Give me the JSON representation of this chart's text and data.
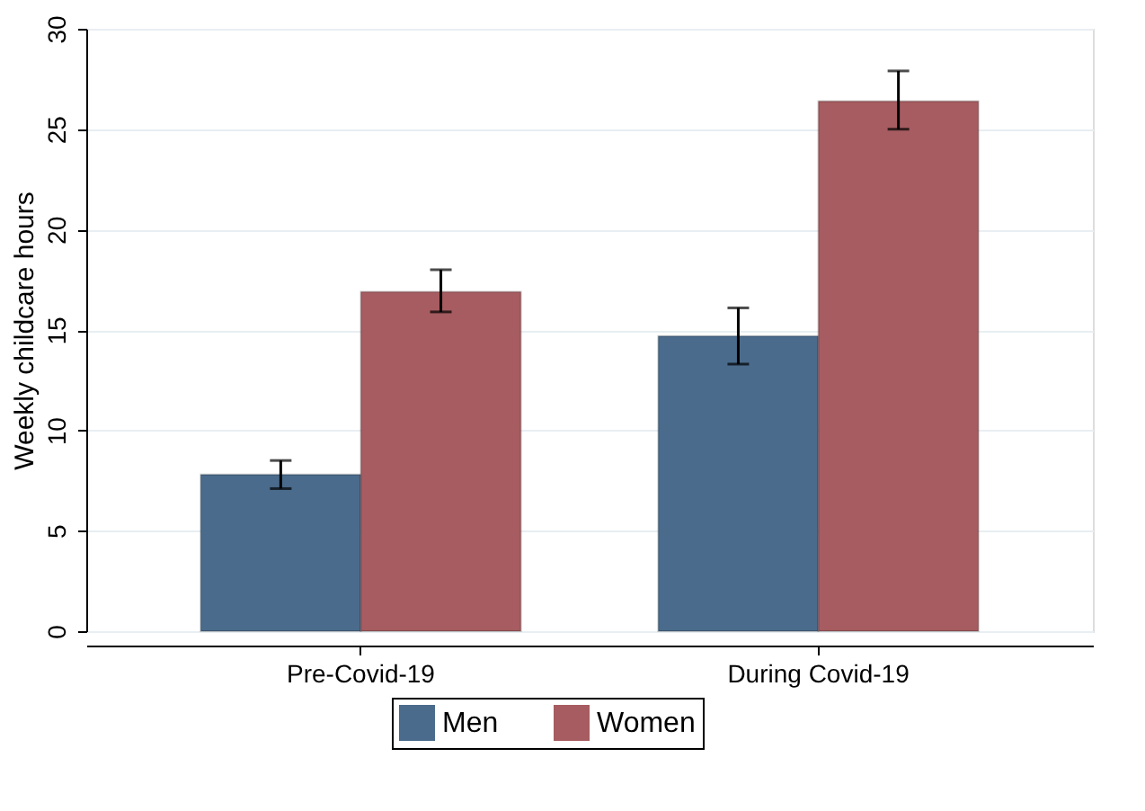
{
  "chart_data": {
    "type": "bar",
    "ylabel": "Weekly childcare hours",
    "categories": [
      "Pre-Covid-19",
      "During Covid-19"
    ],
    "series": [
      {
        "name": "Men",
        "color": "#4a6b8c",
        "values": [
          7.8,
          14.7
        ],
        "errors": [
          [
            7.1,
            8.5
          ],
          [
            13.3,
            16.1
          ]
        ]
      },
      {
        "name": "Women",
        "color": "#a65c60",
        "values": [
          16.9,
          26.4
        ],
        "errors": [
          [
            15.9,
            18.0
          ],
          [
            25.0,
            27.9
          ]
        ]
      }
    ],
    "ylim": [
      0,
      30
    ],
    "yticks": [
      0,
      5,
      10,
      15,
      20,
      25,
      30
    ],
    "grid": "y",
    "legend": "bottom"
  }
}
